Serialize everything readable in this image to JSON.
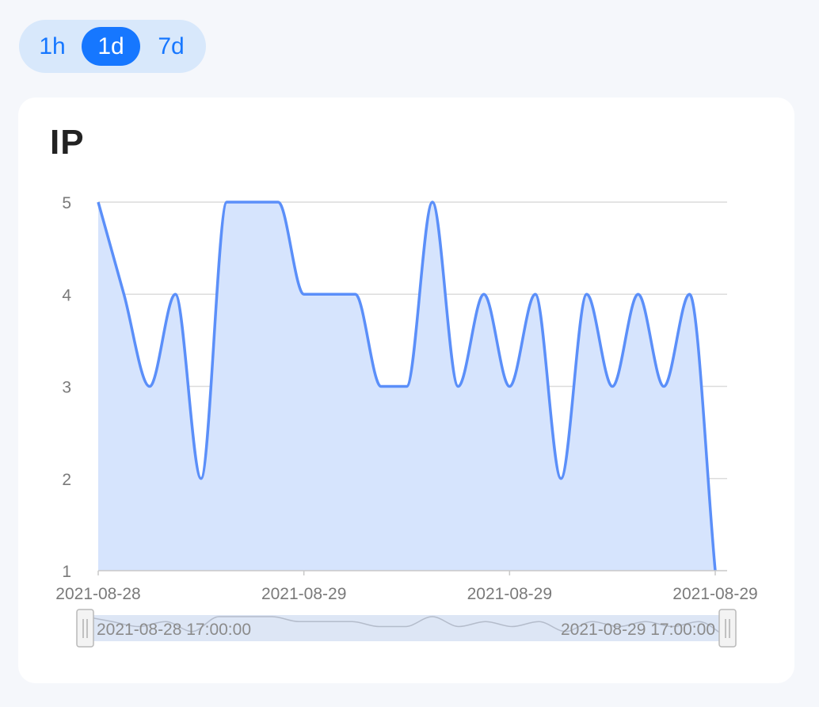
{
  "range_selector": {
    "options": [
      "1h",
      "1d",
      "7d"
    ],
    "selected": "1d"
  },
  "card": {
    "title": "IP"
  },
  "slider": {
    "start_label": "2021-08-28 17:00:00",
    "end_label": "2021-08-29 17:00:00"
  },
  "colors": {
    "line": "#5b8ff9",
    "area": "#d6e4fd",
    "accent": "#1677ff"
  },
  "chart_data": {
    "type": "area",
    "title": "IP",
    "xlabel": "",
    "ylabel": "",
    "ylim": [
      1,
      5
    ],
    "y_ticks": [
      1,
      2,
      3,
      4,
      5
    ],
    "x_tick_labels": [
      "2021-08-28",
      "2021-08-29",
      "2021-08-29",
      "2021-08-29"
    ],
    "grid": true,
    "smooth": true,
    "series": [
      {
        "values": [
          5,
          4,
          3,
          4,
          2,
          5,
          5,
          5,
          4,
          4,
          4,
          3,
          3,
          5,
          3,
          4,
          3,
          4,
          2,
          4,
          3,
          4,
          3,
          4,
          1
        ]
      }
    ]
  }
}
